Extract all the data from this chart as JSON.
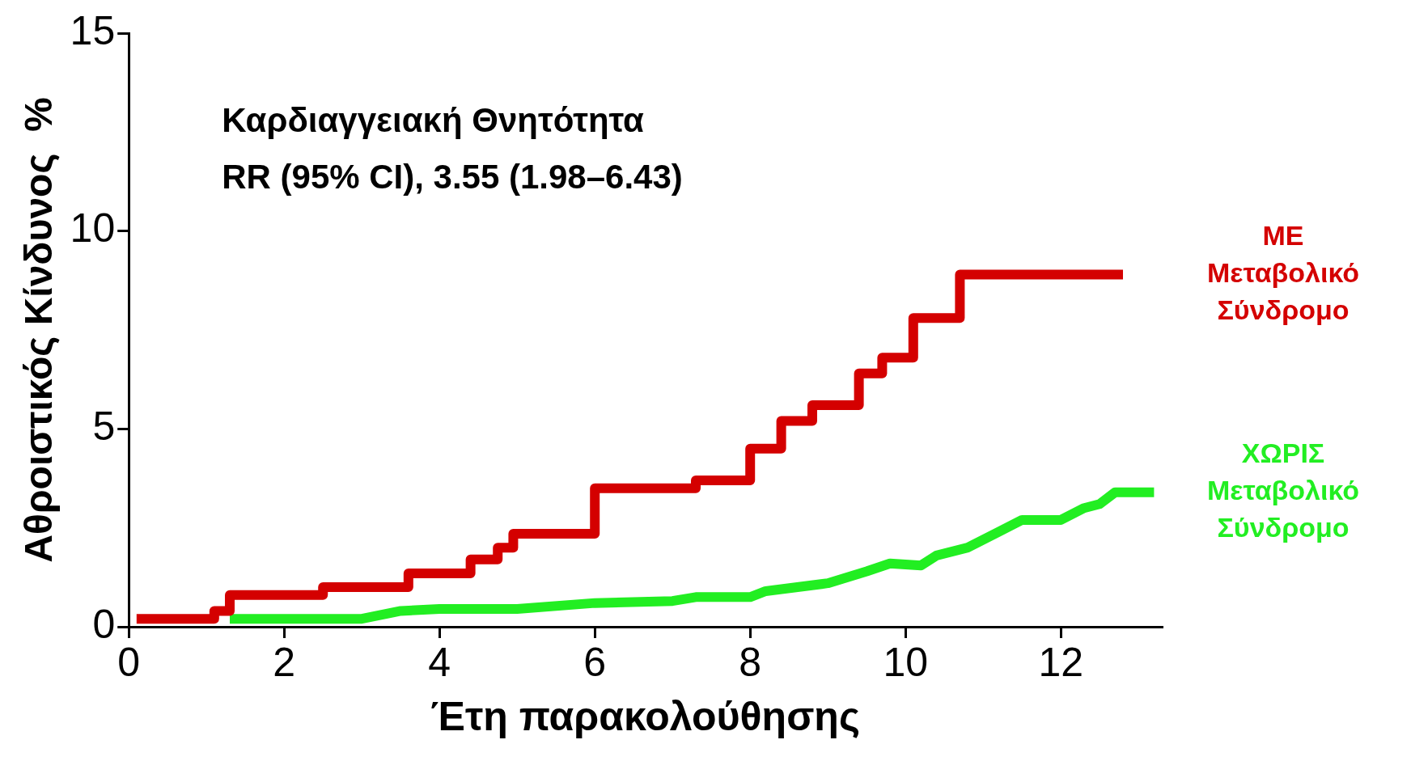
{
  "chart_data": {
    "type": "line",
    "xlabel": "Έτη παρακολούθησης",
    "ylabel": "Αθροιστικός Κίνδυνος  %",
    "annotations": [
      "Καρδιαγγειακή Θνητότητα",
      "RR (95% CI), 3.55 (1.98–6.43)"
    ],
    "xlim": [
      0,
      13.3
    ],
    "xticks": [
      0,
      2,
      4,
      6,
      8,
      10,
      12
    ],
    "ylim": [
      0,
      15
    ],
    "yticks": [
      0,
      5,
      10,
      15
    ],
    "grid": false,
    "legend": false,
    "series": [
      {
        "name": "ΜΕ Μεταβολικό Σύνδρομο",
        "type": "step",
        "color": "#d40000",
        "x": [
          0.1,
          1.1,
          1.3,
          2.5,
          3.6,
          4.4,
          4.75,
          4.95,
          6.0,
          7.3,
          8.0,
          8.4,
          8.8,
          9.4,
          9.7,
          10.1,
          10.7,
          12.8
        ],
        "values": [
          0.2,
          0.4,
          0.8,
          1.0,
          1.35,
          1.7,
          2.0,
          2.35,
          3.5,
          3.7,
          4.5,
          5.2,
          5.6,
          6.4,
          6.8,
          7.8,
          8.9,
          8.9
        ]
      },
      {
        "name": "ΧΩΡΙΣ Μεταβολικό Σύνδρομο",
        "type": "line",
        "color": "#22ee22",
        "x": [
          1.3,
          3.0,
          3.5,
          4.0,
          5.0,
          6.0,
          7.0,
          7.3,
          8.0,
          8.2,
          9.0,
          9.5,
          9.8,
          10.2,
          10.4,
          10.8,
          11.2,
          11.5,
          12.0,
          12.3,
          12.5,
          12.7,
          13.2
        ],
        "values": [
          0.2,
          0.2,
          0.4,
          0.45,
          0.45,
          0.6,
          0.65,
          0.75,
          0.75,
          0.9,
          1.1,
          1.4,
          1.6,
          1.55,
          1.8,
          2.0,
          2.4,
          2.7,
          2.7,
          3.0,
          3.1,
          3.4,
          3.4
        ]
      }
    ]
  }
}
